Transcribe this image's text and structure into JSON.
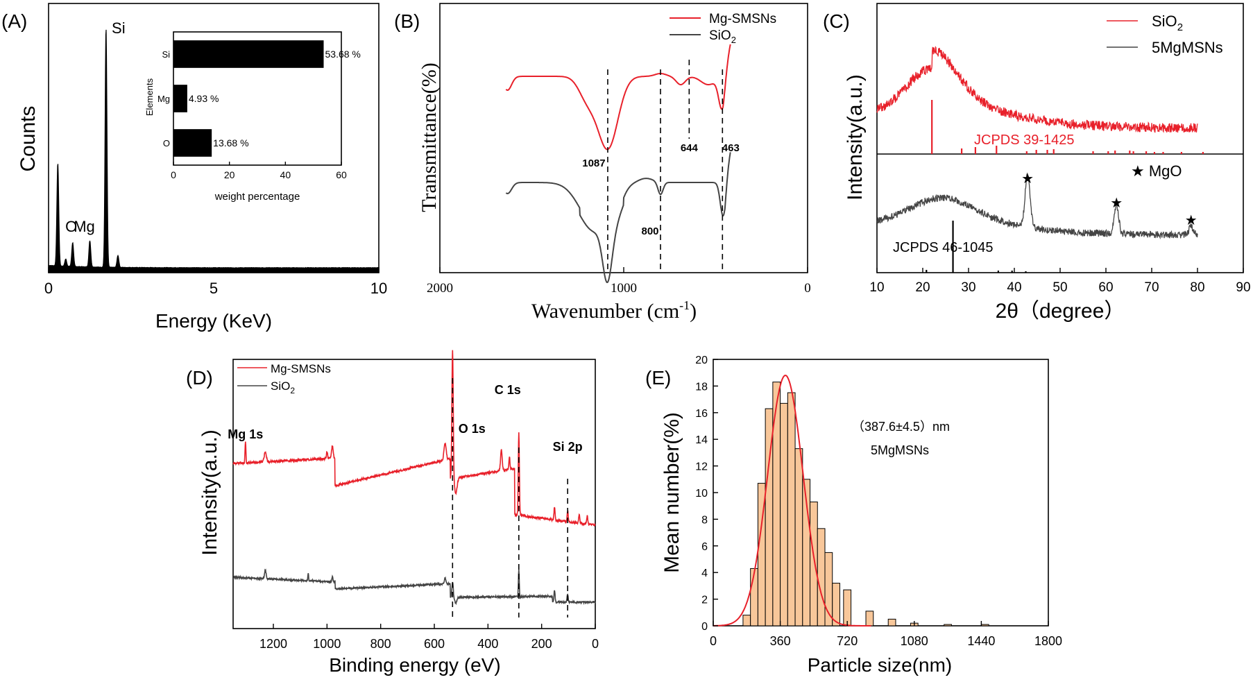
{
  "chart_data": [
    {
      "panel": "(A)",
      "type": "line",
      "xlabel": "Energy (KeV)",
      "ylabel": "Counts",
      "xlim": [
        0,
        10
      ],
      "x_ticks": [
        "0",
        "5",
        "10"
      ],
      "peaks": [
        {
          "x": 0.28,
          "y": 0.43,
          "label": ""
        },
        {
          "x": 0.52,
          "y": 0.03,
          "label": ""
        },
        {
          "x": 0.73,
          "y": 0.1,
          "label": "O"
        },
        {
          "x": 1.25,
          "y": 0.11,
          "label": "Mg"
        },
        {
          "x": 1.74,
          "y": 1.0,
          "label": "Si"
        },
        {
          "x": 2.1,
          "y": 0.05,
          "label": ""
        }
      ],
      "inset": {
        "type": "bar",
        "orientation": "horizontal",
        "ylabel": "Elements",
        "xlabel": "weight percentage",
        "x_ticks": [
          "0",
          "20",
          "40",
          "60"
        ],
        "xlim": [
          0,
          60
        ],
        "categories": [
          "Si",
          "Mg",
          "O"
        ],
        "values": [
          53.68,
          4.93,
          13.68
        ],
        "value_labels": [
          "53.68 %",
          "4.93 %",
          "13.68 %"
        ]
      }
    },
    {
      "panel": "(B)",
      "type": "line",
      "xlabel": "Wavenumber (cm",
      "xlabel_sup": "-1",
      "xlabel_end": ")",
      "ylabel": "Transmittance(%)",
      "xlim": [
        2000,
        0
      ],
      "x_ticks": [
        "2000",
        "1000",
        "0"
      ],
      "series": [
        {
          "name": "Mg-SMSNs",
          "color": "#e8202a"
        },
        {
          "name": "SiO",
          "name_sub": "2",
          "color": "#444444"
        }
      ],
      "annotations": [
        {
          "x": 1087,
          "label": "1087"
        },
        {
          "x": 800,
          "label": "800"
        },
        {
          "x": 644,
          "label": "644"
        },
        {
          "x": 463,
          "label": "463"
        }
      ]
    },
    {
      "panel": "(C)",
      "type": "line",
      "xlabel": "2θ（degree）",
      "ylabel": "Intensity(a.u.)",
      "xlim": [
        10,
        90
      ],
      "x_ticks": [
        "10",
        "20",
        "30",
        "40",
        "50",
        "60",
        "70",
        "80",
        "90"
      ],
      "series": [
        {
          "name": "SiO",
          "name_sub": "2",
          "color": "#e8202a"
        },
        {
          "name": "5MgMSNs",
          "color": "#444444"
        }
      ],
      "reference_labels": [
        "JCPDS 39-1425",
        "JCPDS 46-1045"
      ],
      "marker_legend": "★ MgO",
      "mgo_peaks": [
        42.9,
        62.3,
        78.6
      ]
    },
    {
      "panel": "(D)",
      "type": "line",
      "xlabel": "Binding energy (eV)",
      "ylabel": "Intensity(a.u.)",
      "xlim": [
        1350,
        0
      ],
      "x_ticks": [
        "1200",
        "1000",
        "800",
        "600",
        "400",
        "200",
        "0"
      ],
      "series": [
        {
          "name": "Mg-SMSNs",
          "color": "#e8202a"
        },
        {
          "name": "SiO",
          "name_sub": "2",
          "color": "#444444"
        }
      ],
      "annotations": [
        {
          "x": 1304,
          "label": "Mg 1s"
        },
        {
          "x": 532,
          "label": "O 1s"
        },
        {
          "x": 285,
          "label": "C 1s"
        },
        {
          "x": 103,
          "label": "Si 2p"
        }
      ]
    },
    {
      "panel": "(E)",
      "type": "bar",
      "xlabel": "Particle size(nm)",
      "ylabel": "Mean number(%)",
      "xlim": [
        0,
        1800
      ],
      "ylim": [
        0,
        20
      ],
      "x_ticks": [
        "0",
        "360",
        "720",
        "1080",
        "1440",
        "1800"
      ],
      "y_ticks": [
        "0",
        "2",
        "4",
        "6",
        "8",
        "10",
        "12",
        "14",
        "16",
        "18",
        "20"
      ],
      "bin_width": 40,
      "bins": [
        {
          "x": 180,
          "value": 0.8
        },
        {
          "x": 220,
          "value": 4.3
        },
        {
          "x": 260,
          "value": 10.7
        },
        {
          "x": 300,
          "value": 16.3
        },
        {
          "x": 340,
          "value": 18.3
        },
        {
          "x": 380,
          "value": 16.7
        },
        {
          "x": 420,
          "value": 17.5
        },
        {
          "x": 460,
          "value": 13.3
        },
        {
          "x": 500,
          "value": 11.0
        },
        {
          "x": 540,
          "value": 9.3
        },
        {
          "x": 580,
          "value": 7.3
        },
        {
          "x": 620,
          "value": 5.5
        },
        {
          "x": 660,
          "value": 3.2
        },
        {
          "x": 720,
          "value": 2.7
        },
        {
          "x": 840,
          "value": 1.1
        },
        {
          "x": 960,
          "value": 0.5
        },
        {
          "x": 1080,
          "value": 0.2
        },
        {
          "x": 1260,
          "value": 0.1
        },
        {
          "x": 1460,
          "value": 0.1
        }
      ],
      "fit": {
        "type": "gaussian",
        "mean": 387.6,
        "sd": 95,
        "peak": 18.8,
        "color": "#e8202a"
      },
      "annotation_lines": [
        "（387.6±4.5）nm",
        "5MgMSNs"
      ]
    }
  ],
  "panel_labels": {
    "a": "(A)",
    "b": "(B)",
    "c": "(C)",
    "d": "(D)",
    "e": "(E)"
  }
}
